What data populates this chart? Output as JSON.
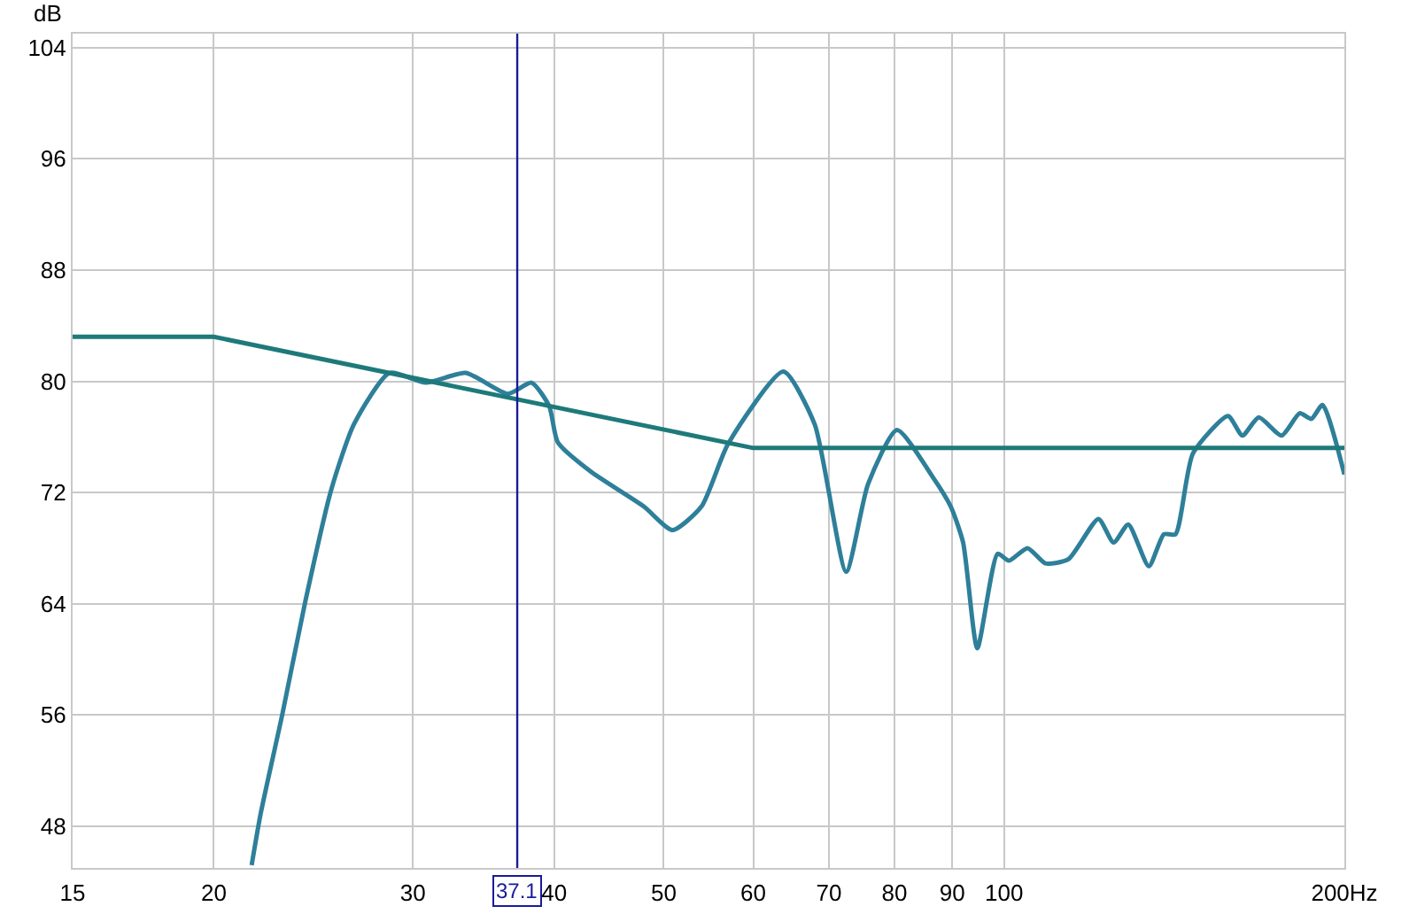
{
  "chart_data": {
    "type": "line",
    "ylabel": "dB",
    "log": "x",
    "grid": true,
    "xlim": [
      15,
      200
    ],
    "ylim": [
      45,
      105
    ],
    "xticks": [
      15,
      20,
      30,
      40,
      50,
      60,
      70,
      80,
      90,
      100,
      {
        "value": 200,
        "label": "200Hz"
      }
    ],
    "yticks": [
      48,
      56,
      64,
      72,
      80,
      88,
      96,
      104
    ],
    "ref_lines": [
      {
        "axis": "x",
        "value": 37.1,
        "label": "37.1",
        "color": "#1a1a9a"
      }
    ],
    "series": [
      {
        "color": "#2e7f9a",
        "x": [
          21.6,
          22.0,
          23.0,
          24.1,
          25.4,
          26.6,
          28.6,
          30.8,
          33.4,
          36.4,
          38.2,
          39.6,
          40.3,
          43.1,
          48.0,
          50.9,
          54.0,
          57.0,
          63.8,
          68.0,
          72.5,
          75.8,
          80.4,
          86.5,
          89.7,
          92.0,
          94.7,
          98.7,
          101,
          104.9,
          108.8,
          114,
          121.2,
          125,
          128.8,
          134.3,
          138.5,
          141.8,
          146.9,
          157.8,
          162.5,
          168,
          176,
          182.6,
          187,
          191.3,
          200
        ],
        "values": [
          45.2,
          48.9,
          56.1,
          64.2,
          72.2,
          76.9,
          80.6,
          79.9,
          80.6,
          79.1,
          79.9,
          78.2,
          75.6,
          73.5,
          71.0,
          69.3,
          71.0,
          75.5,
          80.7,
          76.9,
          66.3,
          72.6,
          76.5,
          73.1,
          71.0,
          68.4,
          60.8,
          67.6,
          67.1,
          68.0,
          66.9,
          67.2,
          70.1,
          68.4,
          69.7,
          66.7,
          69.0,
          69.0,
          74.8,
          77.5,
          76.1,
          77.4,
          76.1,
          77.7,
          77.3,
          78.3,
          73.3
        ]
      },
      {
        "color": "#1e7a7a",
        "x": [
          15,
          20,
          60,
          200
        ],
        "values": [
          83.2,
          83.2,
          75.2,
          75.2
        ]
      }
    ]
  }
}
